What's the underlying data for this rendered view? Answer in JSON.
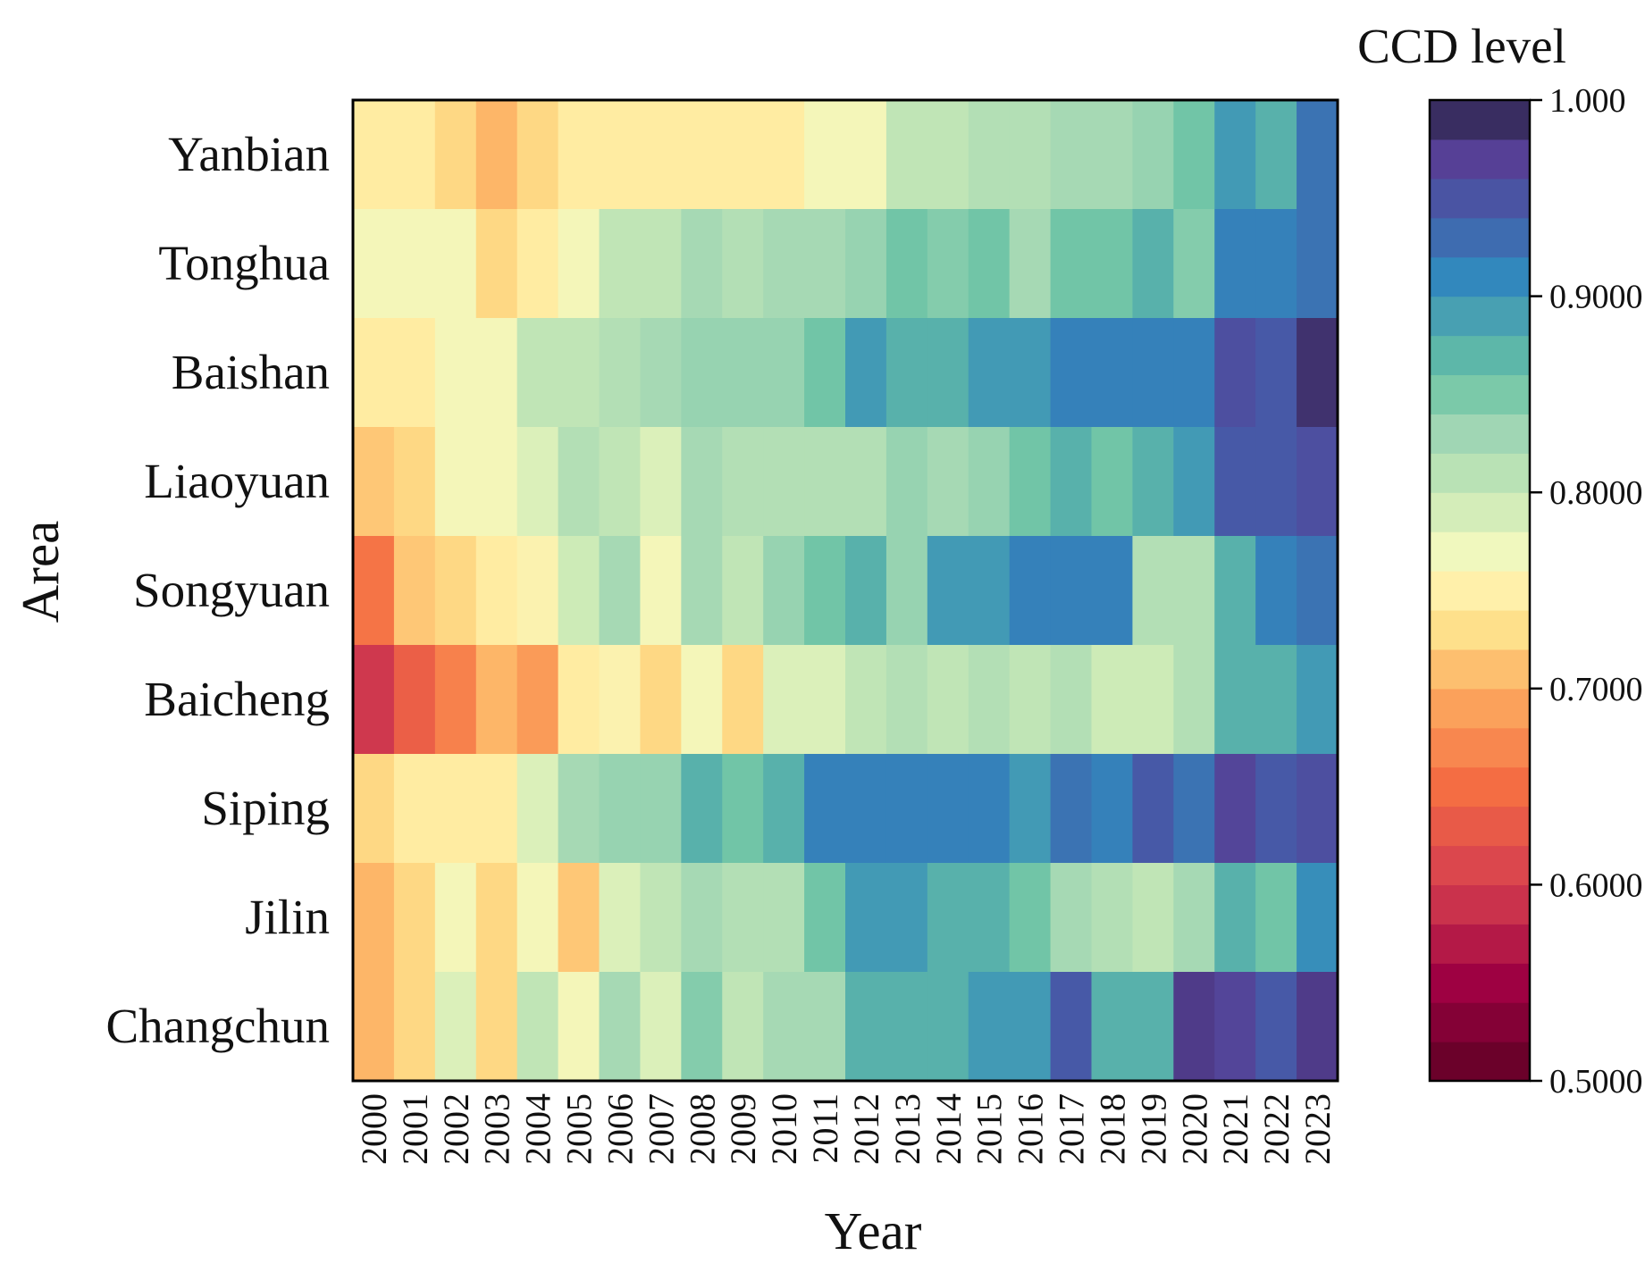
{
  "chart_data": {
    "type": "heatmap",
    "xlabel": "Year",
    "ylabel": "Area",
    "x": [
      "2000",
      "2001",
      "2002",
      "2003",
      "2004",
      "2005",
      "2006",
      "2007",
      "2008",
      "2009",
      "2010",
      "2011",
      "2012",
      "2013",
      "2014",
      "2015",
      "2016",
      "2017",
      "2018",
      "2019",
      "2020",
      "2021",
      "2022",
      "2023"
    ],
    "y": [
      "Yanbian",
      "Tonghua",
      "Baishan",
      "Liaoyuan",
      "Songyuan",
      "Baicheng",
      "Siping",
      "Jilin",
      "Changchun"
    ],
    "values": [
      [
        0.745,
        0.745,
        0.725,
        0.705,
        0.725,
        0.745,
        0.745,
        0.745,
        0.745,
        0.745,
        0.745,
        0.765,
        0.765,
        0.805,
        0.805,
        0.815,
        0.815,
        0.825,
        0.825,
        0.835,
        0.855,
        0.895,
        0.875,
        0.925
      ],
      [
        0.765,
        0.765,
        0.765,
        0.725,
        0.745,
        0.765,
        0.805,
        0.805,
        0.825,
        0.815,
        0.825,
        0.825,
        0.835,
        0.855,
        0.845,
        0.855,
        0.825,
        0.855,
        0.855,
        0.875,
        0.845,
        0.915,
        0.915,
        0.925
      ],
      [
        0.745,
        0.745,
        0.765,
        0.765,
        0.805,
        0.805,
        0.815,
        0.825,
        0.835,
        0.835,
        0.835,
        0.855,
        0.895,
        0.875,
        0.875,
        0.895,
        0.895,
        0.915,
        0.915,
        0.915,
        0.915,
        0.955,
        0.945,
        0.985
      ],
      [
        0.715,
        0.725,
        0.765,
        0.765,
        0.785,
        0.815,
        0.805,
        0.785,
        0.825,
        0.815,
        0.815,
        0.815,
        0.815,
        0.835,
        0.825,
        0.835,
        0.855,
        0.875,
        0.855,
        0.875,
        0.895,
        0.945,
        0.945,
        0.955
      ],
      [
        0.655,
        0.715,
        0.725,
        0.745,
        0.755,
        0.795,
        0.825,
        0.765,
        0.825,
        0.805,
        0.835,
        0.855,
        0.875,
        0.835,
        0.895,
        0.895,
        0.915,
        0.915,
        0.915,
        0.815,
        0.815,
        0.875,
        0.915,
        0.925
      ],
      [
        0.595,
        0.635,
        0.665,
        0.705,
        0.685,
        0.745,
        0.755,
        0.725,
        0.765,
        0.725,
        0.785,
        0.785,
        0.805,
        0.815,
        0.805,
        0.815,
        0.805,
        0.815,
        0.795,
        0.795,
        0.815,
        0.875,
        0.875,
        0.895
      ],
      [
        0.725,
        0.745,
        0.745,
        0.745,
        0.785,
        0.825,
        0.835,
        0.835,
        0.875,
        0.855,
        0.875,
        0.915,
        0.915,
        0.915,
        0.915,
        0.915,
        0.895,
        0.925,
        0.915,
        0.945,
        0.925,
        0.965,
        0.945,
        0.955
      ],
      [
        0.705,
        0.725,
        0.765,
        0.725,
        0.765,
        0.715,
        0.785,
        0.805,
        0.825,
        0.815,
        0.815,
        0.855,
        0.895,
        0.895,
        0.875,
        0.875,
        0.855,
        0.825,
        0.815,
        0.805,
        0.825,
        0.875,
        0.855,
        0.905
      ],
      [
        0.705,
        0.725,
        0.785,
        0.725,
        0.805,
        0.765,
        0.825,
        0.785,
        0.845,
        0.805,
        0.825,
        0.825,
        0.875,
        0.875,
        0.875,
        0.895,
        0.895,
        0.945,
        0.875,
        0.875,
        0.975,
        0.965,
        0.945,
        0.975
      ]
    ],
    "colorbar": {
      "title": "CCD level",
      "range": [
        0.5,
        1.0
      ],
      "ticks": [
        "0.5000",
        "0.6000",
        "0.7000",
        "0.8000",
        "0.9000",
        "1.000"
      ],
      "colormap": "Spectral (reversed, discrete 25 levels)"
    }
  }
}
